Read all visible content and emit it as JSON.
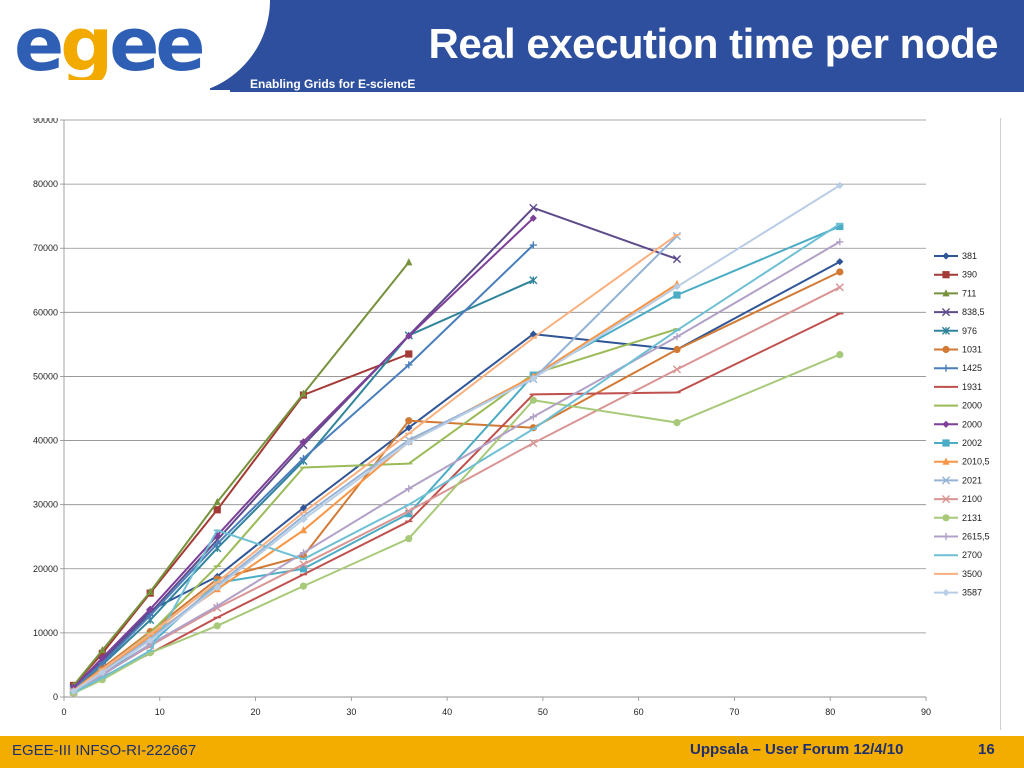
{
  "slide": {
    "title": "Real execution time per node",
    "subtitle": "Enabling Grids for E-sciencE",
    "logo_text": "egee",
    "footer_left": "EGEE-III INFSO-RI-222667",
    "footer_right": "Uppsala – User Forum 12/4/10",
    "page_number": "16"
  },
  "colors": {
    "header_band": "#2e4f9e",
    "footer_band": "#f2ad00",
    "logo_blue": "#2e5fb5",
    "logo_orange": "#f2a900"
  },
  "chart_data": {
    "type": "line",
    "title": "",
    "xlabel": "",
    "ylabel": "",
    "xlim": [
      0,
      90
    ],
    "ylim": [
      0,
      90000
    ],
    "xticks": [
      0,
      10,
      20,
      30,
      40,
      50,
      60,
      70,
      80,
      90
    ],
    "yticks": [
      0,
      10000,
      20000,
      30000,
      40000,
      50000,
      60000,
      70000,
      80000,
      90000
    ],
    "grid": "horizontal",
    "legend_position": "right",
    "series": [
      {
        "name": "381",
        "color": "#2f5597",
        "marker": "diamond",
        "points": [
          [
            1,
            1500
          ],
          [
            4,
            6000
          ],
          [
            9,
            13500
          ],
          [
            16,
            18800
          ],
          [
            25,
            29500
          ],
          [
            36,
            42000
          ],
          [
            49,
            56600
          ],
          [
            64,
            54200
          ],
          [
            81,
            67900
          ]
        ]
      },
      {
        "name": "390",
        "color": "#a33a35",
        "marker": "square",
        "points": [
          [
            1,
            1800
          ],
          [
            4,
            6800
          ],
          [
            9,
            16200
          ],
          [
            16,
            29200
          ],
          [
            25,
            47100
          ],
          [
            36,
            53500
          ]
        ]
      },
      {
        "name": "711",
        "color": "#76923c",
        "marker": "triangle",
        "points": [
          [
            1,
            1800
          ],
          [
            4,
            7300
          ],
          [
            9,
            16400
          ],
          [
            16,
            30400
          ],
          [
            25,
            47300
          ],
          [
            36,
            67800
          ]
        ]
      },
      {
        "name": "838,5",
        "color": "#5f4b8b",
        "marker": "x",
        "points": [
          [
            1,
            1400
          ],
          [
            4,
            5600
          ],
          [
            9,
            13100
          ],
          [
            16,
            24500
          ],
          [
            25,
            39300
          ],
          [
            36,
            56400
          ],
          [
            49,
            76300
          ],
          [
            64,
            68300
          ]
        ]
      },
      {
        "name": "976",
        "color": "#31849b",
        "marker": "star",
        "points": [
          [
            1,
            1200
          ],
          [
            4,
            5000
          ],
          [
            9,
            12000
          ],
          [
            16,
            23200
          ],
          [
            25,
            36800
          ],
          [
            36,
            56400
          ],
          [
            49,
            65000
          ]
        ]
      },
      {
        "name": "1031",
        "color": "#d17a35",
        "marker": "circle",
        "points": [
          [
            1,
            1100
          ],
          [
            4,
            4500
          ],
          [
            9,
            10200
          ],
          [
            16,
            18400
          ],
          [
            25,
            22000
          ],
          [
            36,
            43100
          ],
          [
            49,
            42000
          ],
          [
            64,
            54200
          ],
          [
            81,
            66300
          ]
        ]
      },
      {
        "name": "1425",
        "color": "#4a7ebb",
        "marker": "plus",
        "points": [
          [
            1,
            1300
          ],
          [
            4,
            5300
          ],
          [
            9,
            12700
          ],
          [
            16,
            23900
          ],
          [
            25,
            37200
          ],
          [
            36,
            51800
          ],
          [
            49,
            70500
          ]
        ]
      },
      {
        "name": "1931",
        "color": "#c0504d",
        "marker": "dash",
        "points": [
          [
            1,
            900
          ],
          [
            4,
            3100
          ],
          [
            9,
            6800
          ],
          [
            16,
            12400
          ],
          [
            25,
            19100
          ],
          [
            36,
            27400
          ],
          [
            49,
            47200
          ],
          [
            64,
            47500
          ],
          [
            81,
            59800
          ]
        ]
      },
      {
        "name": "2000",
        "color": "#9bbb59",
        "marker": "dash",
        "points": [
          [
            1,
            1000
          ],
          [
            4,
            4200
          ],
          [
            9,
            10000
          ],
          [
            16,
            20400
          ],
          [
            25,
            35800
          ],
          [
            36,
            36400
          ],
          [
            49,
            50400
          ],
          [
            64,
            57400
          ]
        ]
      },
      {
        "name": "2000",
        "color": "#7e3f98",
        "marker": "diamond",
        "points": [
          [
            1,
            1500
          ],
          [
            4,
            6100
          ],
          [
            9,
            13700
          ],
          [
            16,
            25200
          ],
          [
            25,
            39800
          ],
          [
            36,
            56300
          ],
          [
            49,
            74700
          ]
        ]
      },
      {
        "name": "2002",
        "color": "#4bacc6",
        "marker": "square",
        "points": [
          [
            1,
            800
          ],
          [
            4,
            3600
          ],
          [
            9,
            8200
          ],
          [
            16,
            17800
          ],
          [
            25,
            20000
          ],
          [
            36,
            28600
          ],
          [
            49,
            50200
          ],
          [
            64,
            62700
          ],
          [
            81,
            73400
          ]
        ]
      },
      {
        "name": "2010,5",
        "color": "#f79646",
        "marker": "triangle",
        "points": [
          [
            1,
            1000
          ],
          [
            4,
            4100
          ],
          [
            9,
            9500
          ],
          [
            16,
            16800
          ],
          [
            25,
            26000
          ],
          [
            36,
            39800
          ],
          [
            49,
            50000
          ],
          [
            64,
            64400
          ]
        ]
      },
      {
        "name": "2021",
        "color": "#95b3d7",
        "marker": "x",
        "points": [
          [
            1,
            900
          ],
          [
            4,
            3900
          ],
          [
            9,
            9100
          ],
          [
            16,
            17400
          ],
          [
            25,
            28200
          ],
          [
            36,
            40100
          ],
          [
            49,
            49600
          ],
          [
            64,
            71900
          ]
        ]
      },
      {
        "name": "2100",
        "color": "#d99594",
        "marker": "x",
        "points": [
          [
            1,
            800
          ],
          [
            4,
            3500
          ],
          [
            9,
            8000
          ],
          [
            16,
            13900
          ],
          [
            25,
            20700
          ],
          [
            36,
            29000
          ],
          [
            49,
            39600
          ],
          [
            64,
            51100
          ],
          [
            81,
            63900
          ]
        ]
      },
      {
        "name": "2131",
        "color": "#a9c97a",
        "marker": "circle",
        "points": [
          [
            1,
            600
          ],
          [
            4,
            2700
          ],
          [
            9,
            6900
          ],
          [
            16,
            11100
          ],
          [
            25,
            17300
          ],
          [
            36,
            24700
          ],
          [
            49,
            46300
          ],
          [
            64,
            42800
          ],
          [
            81,
            53400
          ]
        ]
      },
      {
        "name": "2615,5",
        "color": "#b2a1c7",
        "marker": "plus",
        "points": [
          [
            1,
            800
          ],
          [
            4,
            3400
          ],
          [
            9,
            8200
          ],
          [
            16,
            14200
          ],
          [
            25,
            22500
          ],
          [
            36,
            32500
          ],
          [
            49,
            43700
          ],
          [
            64,
            56200
          ],
          [
            81,
            71000
          ]
        ]
      },
      {
        "name": "2700",
        "color": "#6fc0d4",
        "marker": "dash",
        "points": [
          [
            1,
            700
          ],
          [
            4,
            3000
          ],
          [
            9,
            7200
          ],
          [
            16,
            26000
          ],
          [
            25,
            21500
          ],
          [
            36,
            30000
          ],
          [
            49,
            41800
          ],
          [
            64,
            57200
          ],
          [
            81,
            73800
          ]
        ]
      },
      {
        "name": "3500",
        "color": "#fab07e",
        "marker": "dash",
        "points": [
          [
            1,
            1000
          ],
          [
            4,
            4300
          ],
          [
            9,
            9800
          ],
          [
            16,
            17900
          ],
          [
            25,
            28800
          ],
          [
            36,
            41100
          ],
          [
            49,
            56000
          ],
          [
            64,
            72100
          ]
        ]
      },
      {
        "name": "3587",
        "color": "#b9cde5",
        "marker": "diamond",
        "points": [
          [
            1,
            900
          ],
          [
            4,
            3800
          ],
          [
            9,
            8800
          ],
          [
            16,
            17100
          ],
          [
            25,
            27700
          ],
          [
            36,
            39700
          ],
          [
            49,
            49700
          ],
          [
            64,
            64000
          ],
          [
            81,
            79800
          ]
        ]
      }
    ]
  }
}
